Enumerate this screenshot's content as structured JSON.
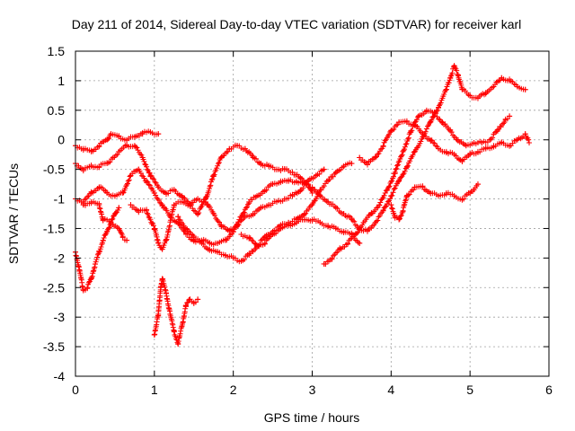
{
  "chart_data": {
    "type": "scatter",
    "title": "Day 211 of 2014, Sidereal Day-to-day VTEC variation (SDTVAR) for receiver karl",
    "xlabel": "GPS time / hours",
    "ylabel": "SDTVAR / TECUs",
    "xlim": [
      0,
      6
    ],
    "ylim": [
      -4,
      1.5
    ],
    "xticks": [
      "0",
      "1",
      "2",
      "3",
      "4",
      "5",
      "6"
    ],
    "yticks": [
      "-4",
      "-3.5",
      "-3",
      "-2.5",
      "-2",
      "-1.5",
      "-1",
      "-0.5",
      "0",
      "0.5",
      "1",
      "1.5"
    ],
    "grid": true,
    "marker": "+",
    "color": "#ff0000",
    "series": [
      {
        "points": [
          [
            0.0,
            -0.1
          ],
          [
            0.1,
            -0.15
          ],
          [
            0.2,
            -0.2
          ],
          [
            0.3,
            -0.1
          ],
          [
            0.4,
            0.0
          ],
          [
            0.45,
            0.1
          ],
          [
            0.55,
            0.05
          ],
          [
            0.65,
            0.0
          ],
          [
            0.75,
            0.05
          ],
          [
            0.85,
            0.12
          ],
          [
            0.95,
            0.13
          ],
          [
            1.05,
            0.1
          ]
        ]
      },
      {
        "points": [
          [
            0.0,
            -0.4
          ],
          [
            0.1,
            -0.5
          ],
          [
            0.2,
            -0.45
          ],
          [
            0.3,
            -0.45
          ],
          [
            0.4,
            -0.4
          ],
          [
            0.55,
            -0.2
          ],
          [
            0.65,
            -0.1
          ],
          [
            0.75,
            -0.1
          ],
          [
            0.85,
            -0.3
          ],
          [
            0.95,
            -0.6
          ],
          [
            1.05,
            -0.8
          ],
          [
            1.15,
            -0.9
          ],
          [
            1.25,
            -0.85
          ],
          [
            1.35,
            -0.95
          ],
          [
            1.45,
            -1.1
          ],
          [
            1.55,
            -1.25
          ],
          [
            1.65,
            -1.0
          ],
          [
            1.75,
            -0.6
          ],
          [
            1.85,
            -0.3
          ],
          [
            1.95,
            -0.15
          ],
          [
            2.05,
            -0.1
          ],
          [
            2.15,
            -0.15
          ],
          [
            2.25,
            -0.3
          ],
          [
            2.35,
            -0.4
          ],
          [
            2.45,
            -0.45
          ],
          [
            2.55,
            -0.5
          ],
          [
            2.65,
            -0.5
          ],
          [
            2.75,
            -0.55
          ],
          [
            2.85,
            -0.65
          ],
          [
            2.95,
            -0.75
          ],
          [
            3.0,
            -0.9
          ]
        ]
      },
      {
        "points": [
          [
            0.0,
            -1.0
          ],
          [
            0.1,
            -1.05
          ],
          [
            0.2,
            -0.9
          ],
          [
            0.3,
            -0.8
          ],
          [
            0.4,
            -0.9
          ],
          [
            0.5,
            -0.95
          ],
          [
            0.6,
            -0.9
          ],
          [
            0.7,
            -0.6
          ],
          [
            0.8,
            -0.5
          ],
          [
            0.9,
            -0.7
          ],
          [
            1.0,
            -0.9
          ],
          [
            1.1,
            -1.1
          ],
          [
            1.2,
            -1.3
          ],
          [
            1.3,
            -1.4
          ],
          [
            1.4,
            -1.6
          ],
          [
            1.5,
            -1.7
          ],
          [
            1.6,
            -1.75
          ],
          [
            1.7,
            -1.85
          ],
          [
            1.8,
            -1.9
          ],
          [
            1.9,
            -1.95
          ],
          [
            2.0,
            -2.0
          ],
          [
            2.1,
            -2.05
          ],
          [
            2.2,
            -1.95
          ],
          [
            2.3,
            -1.8
          ],
          [
            2.4,
            -1.65
          ],
          [
            2.5,
            -1.55
          ],
          [
            2.6,
            -1.45
          ],
          [
            2.7,
            -1.4
          ],
          [
            2.8,
            -1.35
          ],
          [
            2.9,
            -1.25
          ],
          [
            3.0,
            -1.1
          ],
          [
            3.1,
            -0.85
          ],
          [
            3.2,
            -0.7
          ],
          [
            3.3,
            -0.55
          ],
          [
            3.4,
            -0.45
          ],
          [
            3.5,
            -0.4
          ]
        ]
      },
      {
        "points": [
          [
            0.1,
            -1.1
          ],
          [
            0.2,
            -1.05
          ],
          [
            0.3,
            -1.1
          ],
          [
            0.35,
            -1.35
          ],
          [
            0.45,
            -1.4
          ],
          [
            0.55,
            -1.5
          ],
          [
            0.6,
            -1.65
          ],
          [
            0.65,
            -1.7
          ]
        ]
      },
      {
        "points": [
          [
            0.0,
            -1.9
          ],
          [
            0.05,
            -2.2
          ],
          [
            0.1,
            -2.55
          ],
          [
            0.15,
            -2.5
          ],
          [
            0.2,
            -2.35
          ],
          [
            0.25,
            -2.1
          ],
          [
            0.3,
            -1.9
          ],
          [
            0.35,
            -1.7
          ],
          [
            0.4,
            -1.55
          ],
          [
            0.45,
            -1.4
          ],
          [
            0.5,
            -1.25
          ],
          [
            0.55,
            -1.15
          ]
        ]
      },
      {
        "points": [
          [
            1.0,
            -3.3
          ],
          [
            1.05,
            -2.95
          ],
          [
            1.08,
            -2.5
          ],
          [
            1.1,
            -2.35
          ],
          [
            1.15,
            -2.6
          ],
          [
            1.2,
            -2.95
          ],
          [
            1.25,
            -3.25
          ],
          [
            1.3,
            -3.45
          ],
          [
            1.35,
            -3.15
          ],
          [
            1.4,
            -2.8
          ],
          [
            1.45,
            -2.7
          ],
          [
            1.5,
            -2.75
          ],
          [
            1.55,
            -2.7
          ]
        ]
      },
      {
        "points": [
          [
            0.7,
            -1.1
          ],
          [
            0.8,
            -1.2
          ],
          [
            0.9,
            -1.2
          ],
          [
            1.0,
            -1.5
          ],
          [
            1.05,
            -1.75
          ],
          [
            1.1,
            -1.85
          ],
          [
            1.15,
            -1.7
          ],
          [
            1.25,
            -1.1
          ],
          [
            1.35,
            -1.05
          ],
          [
            1.45,
            -1.1
          ],
          [
            1.55,
            -1.0
          ],
          [
            1.65,
            -1.05
          ],
          [
            1.75,
            -1.25
          ],
          [
            1.85,
            -1.45
          ],
          [
            1.95,
            -1.55
          ],
          [
            2.05,
            -1.45
          ],
          [
            2.15,
            -1.3
          ],
          [
            2.25,
            -1.25
          ],
          [
            2.35,
            -1.15
          ],
          [
            2.45,
            -1.1
          ],
          [
            2.55,
            -1.05
          ],
          [
            2.65,
            -1.0
          ],
          [
            2.75,
            -0.95
          ],
          [
            2.85,
            -0.85
          ],
          [
            2.95,
            -0.7
          ],
          [
            3.05,
            -0.6
          ],
          [
            3.15,
            -0.5
          ]
        ]
      },
      {
        "points": [
          [
            1.3,
            -1.3
          ],
          [
            1.4,
            -1.5
          ],
          [
            1.5,
            -1.65
          ],
          [
            1.6,
            -1.7
          ],
          [
            1.7,
            -1.75
          ],
          [
            1.8,
            -1.75
          ],
          [
            1.9,
            -1.7
          ],
          [
            2.0,
            -1.55
          ],
          [
            2.1,
            -1.3
          ],
          [
            2.2,
            -1.05
          ],
          [
            2.3,
            -0.95
          ],
          [
            2.4,
            -0.85
          ],
          [
            2.5,
            -0.75
          ],
          [
            2.6,
            -0.7
          ],
          [
            2.7,
            -0.7
          ],
          [
            2.8,
            -0.7
          ],
          [
            2.9,
            -0.75
          ],
          [
            3.0,
            -0.8
          ],
          [
            3.1,
            -0.95
          ],
          [
            3.2,
            -1.05
          ],
          [
            3.3,
            -1.15
          ],
          [
            3.4,
            -1.25
          ],
          [
            3.5,
            -1.35
          ],
          [
            3.6,
            -1.5
          ],
          [
            3.7,
            -1.55
          ],
          [
            3.8,
            -1.4
          ],
          [
            3.9,
            -1.2
          ],
          [
            4.0,
            -0.95
          ],
          [
            4.1,
            -0.7
          ],
          [
            4.2,
            -0.45
          ],
          [
            4.3,
            -0.2
          ],
          [
            4.4,
            0.05
          ],
          [
            4.5,
            0.3
          ],
          [
            4.6,
            0.55
          ],
          [
            4.7,
            0.85
          ],
          [
            4.75,
            1.05
          ],
          [
            4.8,
            1.25
          ],
          [
            4.85,
            1.1
          ],
          [
            4.9,
            0.85
          ],
          [
            5.0,
            0.75
          ],
          [
            5.1,
            0.7
          ],
          [
            5.2,
            0.8
          ],
          [
            5.3,
            0.9
          ],
          [
            5.4,
            1.05
          ],
          [
            5.5,
            1.0
          ],
          [
            5.6,
            0.9
          ],
          [
            5.7,
            0.85
          ]
        ]
      },
      {
        "points": [
          [
            2.1,
            -1.6
          ],
          [
            2.2,
            -1.65
          ],
          [
            2.3,
            -1.8
          ],
          [
            2.4,
            -1.75
          ],
          [
            2.5,
            -1.6
          ],
          [
            2.6,
            -1.5
          ],
          [
            2.7,
            -1.45
          ],
          [
            2.8,
            -1.4
          ],
          [
            2.9,
            -1.35
          ],
          [
            3.0,
            -1.35
          ],
          [
            3.1,
            -1.4
          ],
          [
            3.2,
            -1.45
          ],
          [
            3.3,
            -1.5
          ],
          [
            3.4,
            -1.55
          ],
          [
            3.5,
            -1.6
          ],
          [
            3.6,
            -1.75
          ]
        ]
      },
      {
        "points": [
          [
            3.15,
            -2.1
          ],
          [
            3.25,
            -2.0
          ],
          [
            3.35,
            -1.85
          ],
          [
            3.45,
            -1.75
          ],
          [
            3.55,
            -1.6
          ],
          [
            3.65,
            -1.4
          ],
          [
            3.75,
            -1.25
          ],
          [
            3.85,
            -1.1
          ],
          [
            3.95,
            -0.85
          ],
          [
            4.05,
            -0.55
          ],
          [
            4.15,
            -0.2
          ],
          [
            4.25,
            0.15
          ],
          [
            4.35,
            0.4
          ],
          [
            4.45,
            0.5
          ],
          [
            4.55,
            0.45
          ],
          [
            4.65,
            0.3
          ],
          [
            4.75,
            0.15
          ],
          [
            4.85,
            0.0
          ],
          [
            4.95,
            -0.1
          ],
          [
            5.05,
            -0.05
          ],
          [
            5.15,
            -0.05
          ],
          [
            5.25,
            0.0
          ],
          [
            5.35,
            0.15
          ],
          [
            5.45,
            0.35
          ],
          [
            5.5,
            0.4
          ]
        ]
      },
      {
        "points": [
          [
            3.6,
            -0.3
          ],
          [
            3.7,
            -0.4
          ],
          [
            3.8,
            -0.3
          ],
          [
            3.9,
            -0.1
          ],
          [
            4.0,
            0.15
          ],
          [
            4.1,
            0.3
          ],
          [
            4.2,
            0.3
          ],
          [
            4.3,
            0.25
          ],
          [
            4.4,
            0.1
          ],
          [
            4.5,
            0.0
          ],
          [
            4.6,
            -0.15
          ],
          [
            4.7,
            -0.2
          ],
          [
            4.8,
            -0.25
          ],
          [
            4.9,
            -0.35
          ],
          [
            5.0,
            -0.25
          ],
          [
            5.1,
            -0.2
          ],
          [
            5.2,
            -0.15
          ],
          [
            5.3,
            -0.1
          ],
          [
            5.4,
            -0.05
          ],
          [
            5.5,
            -0.1
          ],
          [
            5.6,
            0.0
          ],
          [
            5.7,
            0.1
          ],
          [
            5.75,
            -0.05
          ]
        ]
      },
      {
        "points": [
          [
            4.0,
            -1.1
          ],
          [
            4.05,
            -1.3
          ],
          [
            4.1,
            -1.35
          ],
          [
            4.15,
            -1.2
          ],
          [
            4.2,
            -0.95
          ],
          [
            4.3,
            -0.8
          ],
          [
            4.4,
            -0.8
          ],
          [
            4.5,
            -0.9
          ],
          [
            4.6,
            -0.95
          ],
          [
            4.7,
            -0.9
          ],
          [
            4.8,
            -0.95
          ],
          [
            4.9,
            -1.0
          ],
          [
            5.0,
            -0.9
          ],
          [
            5.1,
            -0.75
          ]
        ]
      }
    ]
  }
}
